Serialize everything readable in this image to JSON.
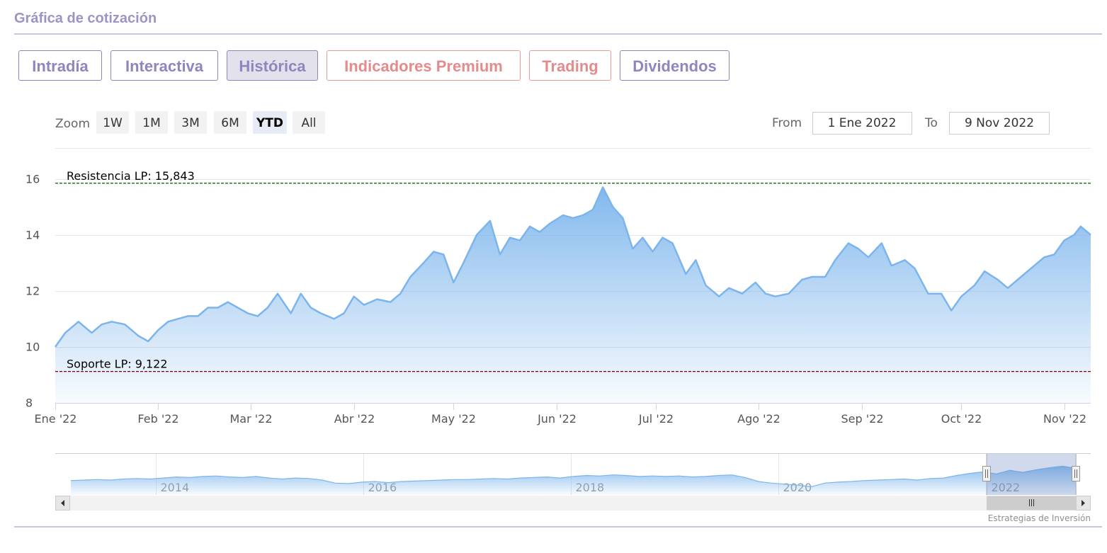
{
  "page": {
    "title": "Gráfica de cotización"
  },
  "tabs": [
    {
      "label": "Intradía",
      "style": "normal"
    },
    {
      "label": "Interactiva",
      "style": "normal"
    },
    {
      "label": "Histórica",
      "style": "active"
    },
    {
      "label": "Indicadores Premium",
      "style": "premium"
    },
    {
      "label": "Trading",
      "style": "premium"
    },
    {
      "label": "Dividendos",
      "style": "normal"
    }
  ],
  "zoom": {
    "label": "Zoom",
    "buttons": [
      "1W",
      "1M",
      "3M",
      "6M",
      "YTD",
      "All"
    ],
    "active": "YTD"
  },
  "range": {
    "from_label": "From",
    "from_value": "1 Ene 2022",
    "to_label": "To",
    "to_value": "9 Nov 2022"
  },
  "credits": "Estrategias de Inversión",
  "colors": {
    "series": "#7cb5ec",
    "resistance": "#006400",
    "support": "#800000",
    "tab_text": "#8e87bf",
    "tab_premium": "#e48b8b"
  },
  "chart_data": {
    "type": "area",
    "title": "",
    "xlabel": "",
    "ylabel": "",
    "ylim": [
      8,
      17
    ],
    "yticks": [
      "8",
      "10",
      "12",
      "14",
      "16"
    ],
    "grid": true,
    "legend": "none",
    "x_ticks": [
      "Ene '22",
      "Feb '22",
      "Mar '22",
      "Abr '22",
      "May '22",
      "Jun '22",
      "Jul '22",
      "Ago '22",
      "Sep '22",
      "Oct '22",
      "Nov '22"
    ],
    "x_tick_dates": [
      "2022-01-01",
      "2022-02-01",
      "2022-03-01",
      "2022-04-01",
      "2022-05-01",
      "2022-06-01",
      "2022-07-01",
      "2022-08-01",
      "2022-09-01",
      "2022-10-01",
      "2022-11-01"
    ],
    "x_range": [
      "2022-01-01",
      "2022-11-09"
    ],
    "plot_lines": [
      {
        "label": "Resistencia LP: 15,843",
        "value": 15.843,
        "color": "#006400"
      },
      {
        "label": "Soporte LP: 9,122",
        "value": 9.122,
        "color": "#800000"
      }
    ],
    "series": [
      {
        "x": [
          "2022-01-01",
          "2022-01-04",
          "2022-01-08",
          "2022-01-12",
          "2022-01-15",
          "2022-01-18",
          "2022-01-22",
          "2022-01-26",
          "2022-01-29",
          "2022-02-01",
          "2022-02-04",
          "2022-02-07",
          "2022-02-10",
          "2022-02-13",
          "2022-02-16",
          "2022-02-19",
          "2022-02-22",
          "2022-02-25",
          "2022-02-28",
          "2022-03-03",
          "2022-03-06",
          "2022-03-09",
          "2022-03-13",
          "2022-03-16",
          "2022-03-19",
          "2022-03-22",
          "2022-03-26",
          "2022-03-29",
          "2022-04-01",
          "2022-04-04",
          "2022-04-08",
          "2022-04-12",
          "2022-04-15",
          "2022-04-18",
          "2022-04-22",
          "2022-04-25",
          "2022-04-28",
          "2022-05-01",
          "2022-05-04",
          "2022-05-08",
          "2022-05-12",
          "2022-05-15",
          "2022-05-18",
          "2022-05-21",
          "2022-05-24",
          "2022-05-27",
          "2022-05-30",
          "2022-06-03",
          "2022-06-06",
          "2022-06-09",
          "2022-06-12",
          "2022-06-15",
          "2022-06-18",
          "2022-06-21",
          "2022-06-24",
          "2022-06-27",
          "2022-06-30",
          "2022-07-03",
          "2022-07-06",
          "2022-07-10",
          "2022-07-13",
          "2022-07-16",
          "2022-07-20",
          "2022-07-23",
          "2022-07-27",
          "2022-07-31",
          "2022-08-03",
          "2022-08-06",
          "2022-08-10",
          "2022-08-14",
          "2022-08-17",
          "2022-08-21",
          "2022-08-24",
          "2022-08-28",
          "2022-08-31",
          "2022-09-03",
          "2022-09-07",
          "2022-09-10",
          "2022-09-14",
          "2022-09-17",
          "2022-09-21",
          "2022-09-25",
          "2022-09-28",
          "2022-10-01",
          "2022-10-05",
          "2022-10-08",
          "2022-10-12",
          "2022-10-15",
          "2022-10-19",
          "2022-10-22",
          "2022-10-26",
          "2022-10-29",
          "2022-11-01",
          "2022-11-04",
          "2022-11-06",
          "2022-11-09"
        ],
        "y": [
          10.0,
          10.5,
          10.9,
          10.5,
          10.8,
          10.9,
          10.8,
          10.4,
          10.2,
          10.6,
          10.9,
          11.0,
          11.1,
          11.1,
          11.4,
          11.4,
          11.6,
          11.4,
          11.2,
          11.1,
          11.4,
          11.9,
          11.2,
          11.9,
          11.4,
          11.2,
          11.0,
          11.2,
          11.8,
          11.5,
          11.7,
          11.6,
          11.9,
          12.5,
          13.0,
          13.4,
          13.3,
          12.3,
          13.0,
          14.0,
          14.5,
          13.3,
          13.9,
          13.8,
          14.3,
          14.1,
          14.4,
          14.7,
          14.6,
          14.7,
          14.9,
          15.7,
          15.0,
          14.6,
          13.5,
          13.9,
          13.4,
          13.9,
          13.7,
          12.6,
          13.1,
          12.2,
          11.8,
          12.1,
          11.9,
          12.3,
          11.9,
          11.8,
          11.9,
          12.4,
          12.5,
          12.5,
          13.1,
          13.7,
          13.5,
          13.2,
          13.7,
          12.9,
          13.1,
          12.8,
          11.9,
          11.9,
          11.3,
          11.8,
          12.2,
          12.7,
          12.4,
          12.1,
          12.5,
          12.8,
          13.2,
          13.3,
          13.8,
          14.0,
          14.3,
          14.0
        ]
      }
    ],
    "navigator": {
      "year_labels": [
        "2014",
        "2016",
        "2018",
        "2020",
        "2022"
      ],
      "values": [
        10.8,
        10.9,
        11.0,
        10.9,
        11.1,
        11.2,
        11.1,
        11.3,
        11.5,
        11.4,
        11.6,
        11.7,
        11.5,
        11.4,
        11.6,
        11.3,
        11.1,
        11.3,
        11.2,
        10.9,
        10.3,
        10.2,
        10.5,
        10.6,
        10.4,
        10.6,
        10.7,
        10.8,
        10.9,
        11.0,
        11.0,
        11.1,
        11.2,
        11.1,
        11.3,
        11.4,
        11.5,
        11.3,
        11.6,
        11.8,
        11.7,
        11.9,
        11.8,
        11.6,
        11.7,
        11.6,
        11.7,
        11.5,
        11.6,
        11.8,
        11.9,
        11.4,
        10.6,
        10.3,
        10.1,
        9.9,
        9.6,
        10.3,
        10.5,
        10.6,
        10.8,
        10.9,
        11.0,
        11.1,
        10.9,
        11.2,
        11.3,
        11.8,
        12.2,
        12.5,
        12.1,
        12.8,
        12.4,
        12.9,
        13.3,
        13.6,
        13.2
      ]
    }
  }
}
